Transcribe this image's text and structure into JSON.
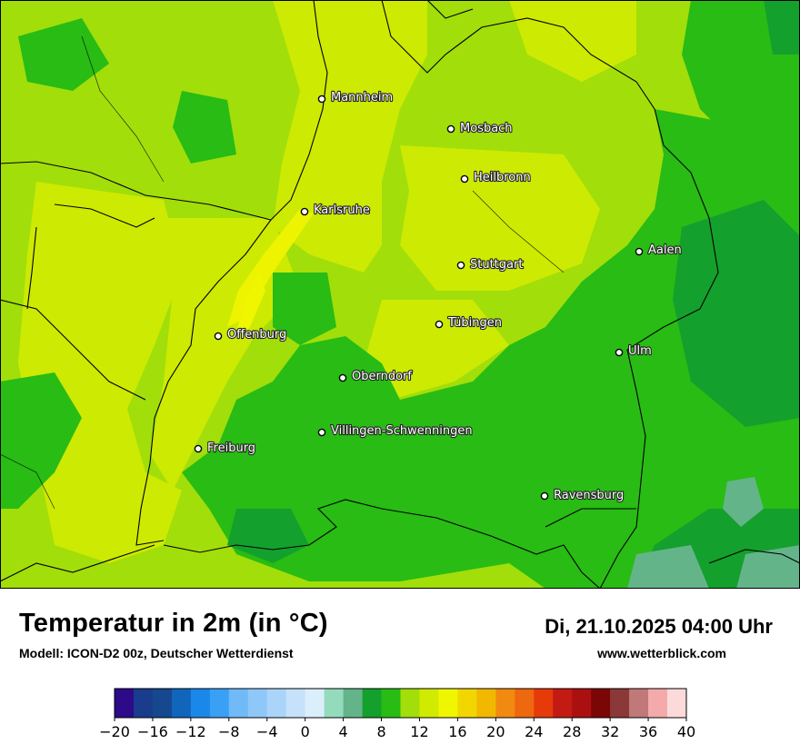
{
  "title": "Temperatur in 2m (in °C)",
  "subtitle": "Modell: ICON-D2 00z, Deutscher Wetterdienst",
  "datetime": "Di, 21.10.2025 04:00 Uhr",
  "website": "www.wetterblick.com",
  "cities": [
    {
      "name": "Mannheim"
    },
    {
      "name": "Mosbach"
    },
    {
      "name": "Heilbronn"
    },
    {
      "name": "Karlsruhe"
    },
    {
      "name": "Aalen"
    },
    {
      "name": "Stuttgart"
    },
    {
      "name": "Tübingen"
    },
    {
      "name": "Offenburg"
    },
    {
      "name": "Ulm"
    },
    {
      "name": "Oberndorf"
    },
    {
      "name": "Villingen-Schwenningen"
    },
    {
      "name": "Freiburg"
    },
    {
      "name": "Ravensburg"
    }
  ],
  "legend": {
    "ticks": [
      "−20",
      "−16",
      "−12",
      "−8",
      "−4",
      "0",
      "4",
      "8",
      "12",
      "16",
      "20",
      "24",
      "28",
      "32",
      "36",
      "40"
    ],
    "colors": [
      "#2c0a8a",
      "#1a3c8c",
      "#15488f",
      "#1166bb",
      "#1a88e8",
      "#3aa0f5",
      "#70baf8",
      "#8fc8f8",
      "#aad4fa",
      "#c6e2fb",
      "#dbeefc",
      "#94dbbd",
      "#64b48a",
      "#14a02c",
      "#28bc14",
      "#a2de0a",
      "#d0ea00",
      "#f0f600",
      "#f2d600",
      "#f2b800",
      "#f28a10",
      "#ee6810",
      "#e63a0a",
      "#c41a14",
      "#aa1010",
      "#7a0606",
      "#8a3838",
      "#c07878",
      "#f4aaaa",
      "#fddada"
    ]
  }
}
